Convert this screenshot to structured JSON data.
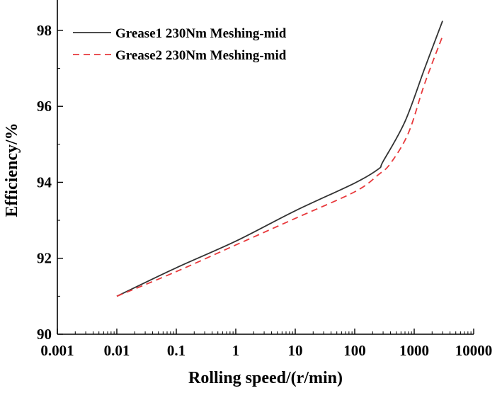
{
  "chart_data": {
    "type": "line",
    "title": "",
    "xlabel": "Rolling speed/(r/min)",
    "ylabel": "Efficiency/%",
    "xscale": "log",
    "xlim": [
      0.001,
      10000
    ],
    "ylim": [
      90,
      98.8
    ],
    "xticks": [
      {
        "value": 0.001,
        "label": "0.001"
      },
      {
        "value": 0.01,
        "label": "0.01"
      },
      {
        "value": 0.1,
        "label": "0.1"
      },
      {
        "value": 1,
        "label": "1"
      },
      {
        "value": 10,
        "label": "10"
      },
      {
        "value": 100,
        "label": "100"
      },
      {
        "value": 1000,
        "label": "1000"
      },
      {
        "value": 10000,
        "label": "10000"
      }
    ],
    "yticks": [
      {
        "value": 90,
        "label": "90"
      },
      {
        "value": 92,
        "label": "92"
      },
      {
        "value": 94,
        "label": "94"
      },
      {
        "value": 96,
        "label": "96"
      },
      {
        "value": 98,
        "label": "98"
      }
    ],
    "grid": false,
    "legend_position": "top-left",
    "series": [
      {
        "name": "Grease1 230Nm Meshing-mid",
        "color": "#333333",
        "line_style": "solid",
        "x": [
          0.01,
          0.1,
          1,
          10,
          100,
          250,
          300,
          700,
          1500,
          3000
        ],
        "y": [
          91.0,
          91.75,
          92.45,
          93.25,
          93.98,
          94.35,
          94.55,
          95.6,
          97.0,
          98.25
        ]
      },
      {
        "name": "Grease2 230Nm Meshing-mid",
        "color": "#e8393c",
        "line_style": "dashed",
        "x": [
          0.01,
          0.1,
          1,
          10,
          100,
          250,
          400,
          800,
          1500,
          3000
        ],
        "y": [
          91.0,
          91.65,
          92.35,
          93.05,
          93.75,
          94.2,
          94.5,
          95.3,
          96.6,
          97.85
        ]
      }
    ]
  }
}
